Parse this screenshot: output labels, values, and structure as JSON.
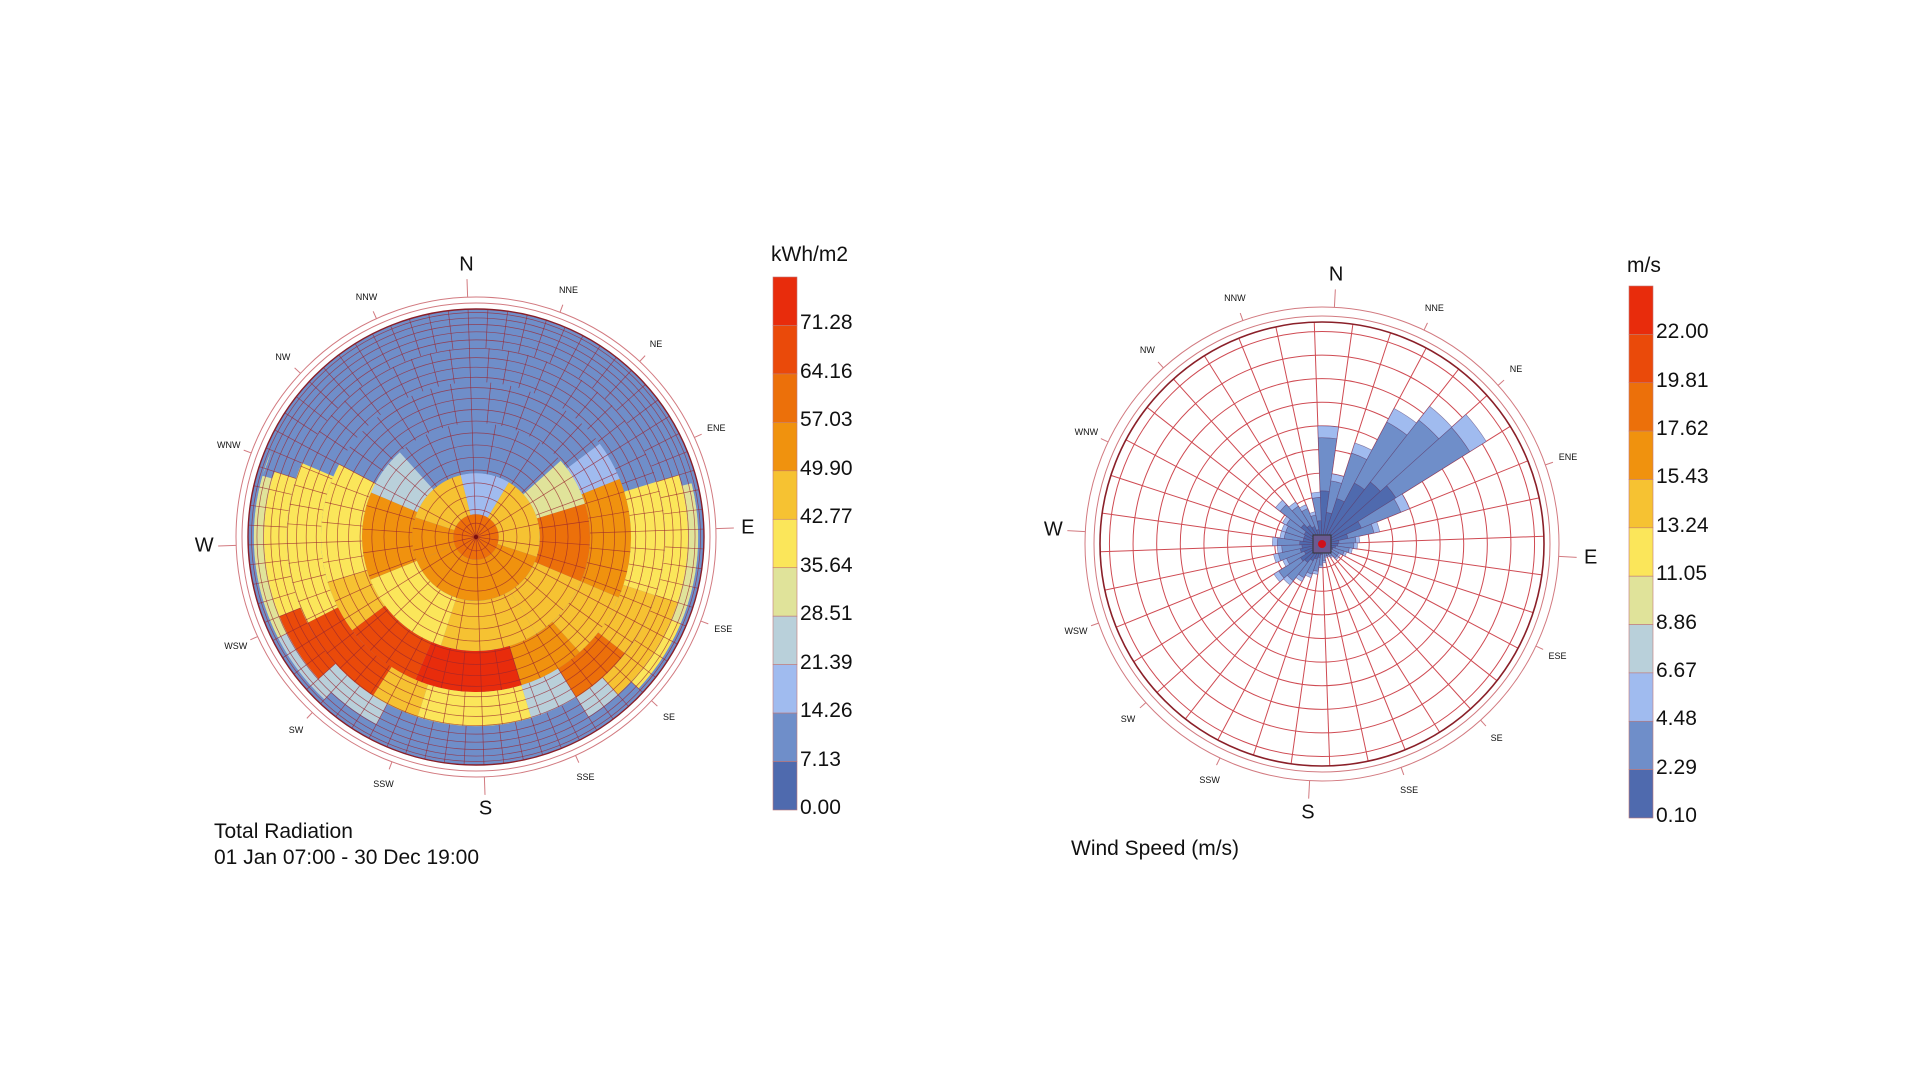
{
  "chart_data": [
    {
      "type": "heatmap",
      "subtype": "polar-sky-matrix",
      "title": "Total Radiation",
      "subtitle": "01 Jan 07:00 - 30 Dec 19:00",
      "legend": {
        "title": "kWh/m2",
        "placement": "right",
        "labels": [
          "71.28",
          "64.16",
          "57.03",
          "49.90",
          "42.77",
          "35.64",
          "28.51",
          "21.39",
          "14.26",
          "7.13",
          "0.00"
        ],
        "colors": [
          "#e82c0c",
          "#ea4a0a",
          "#ec700a",
          "#f0920e",
          "#f6c232",
          "#fbe65a",
          "#e0e39a",
          "#b9d0da",
          "#a0bbef",
          "#6f8ec9",
          "#4f6aae"
        ]
      },
      "compass": {
        "major": [
          "N",
          "E",
          "S",
          "W"
        ],
        "minor": [
          "NNE",
          "NE",
          "ENE",
          "ESE",
          "SE",
          "SSE",
          "SSW",
          "SW",
          "WSW",
          "WNW",
          "NW",
          "NNW"
        ]
      },
      "bands": [
        {
          "segments": [
            [
              0,
              360,
              8
            ]
          ]
        },
        {
          "segments": [
            [
              -12,
              33,
              2
            ],
            [
              33,
              110,
              6
            ],
            [
              110,
              250,
              7
            ],
            [
              250,
              290,
              7
            ],
            [
              290,
              348,
              6
            ]
          ]
        },
        {
          "segments": [
            [
              -40,
              50,
              1
            ],
            [
              50,
              75,
              4
            ],
            [
              75,
              115,
              8
            ],
            [
              115,
              150,
              6
            ],
            [
              150,
              200,
              6
            ],
            [
              200,
              250,
              5
            ],
            [
              250,
              295,
              7
            ],
            [
              295,
              320,
              3
            ],
            [
              320,
              320,
              2
            ]
          ]
        },
        {
          "segments": [
            [
              -60,
              55,
              1
            ],
            [
              55,
              70,
              2
            ],
            [
              70,
              115,
              7
            ],
            [
              115,
              140,
              6
            ],
            [
              140,
              165,
              7
            ],
            [
              165,
              205,
              10
            ],
            [
              205,
              235,
              9
            ],
            [
              235,
              255,
              6
            ],
            [
              255,
              300,
              5
            ],
            [
              300,
              300,
              2
            ]
          ]
        },
        {
          "segments": [
            [
              -65,
              62,
              1
            ],
            [
              62,
              75,
              1
            ],
            [
              75,
              110,
              5
            ],
            [
              110,
              130,
              6
            ],
            [
              130,
              150,
              8
            ],
            [
              150,
              165,
              3
            ],
            [
              165,
              200,
              5
            ],
            [
              200,
              215,
              6
            ],
            [
              215,
              245,
              9
            ],
            [
              245,
              295,
              5
            ],
            [
              295,
              295,
              1
            ]
          ]
        },
        {
          "segments": [
            [
              -70,
              75,
              1
            ],
            [
              75,
              110,
              5
            ],
            [
              110,
              140,
              6
            ],
            [
              140,
              150,
              3
            ],
            [
              150,
              210,
              1
            ],
            [
              210,
              230,
              3
            ],
            [
              230,
              250,
              9
            ],
            [
              250,
              290,
              5
            ],
            [
              290,
              290,
              4
            ]
          ]
        },
        {
          "segments": [
            [
              -72,
              78,
              1
            ],
            [
              78,
              115,
              4
            ],
            [
              115,
              135,
              5
            ],
            [
              135,
              225,
              1
            ],
            [
              225,
              245,
              3
            ],
            [
              245,
              295,
              4
            ],
            [
              295,
              295,
              1
            ]
          ]
        },
        {
          "segments": [
            [
              0,
              360,
              1
            ]
          ]
        }
      ]
    },
    {
      "type": "bar",
      "subtype": "wind-rose",
      "title": "Wind Speed (m/s)",
      "legend": {
        "title": "m/s",
        "placement": "right",
        "labels": [
          "22.00",
          "19.81",
          "17.62",
          "15.43",
          "13.24",
          "11.05",
          "8.86",
          "6.67",
          "4.48",
          "2.29",
          "0.10"
        ],
        "colors": [
          "#e82c0c",
          "#ea4a0a",
          "#ec700a",
          "#f0920e",
          "#f6c232",
          "#fbe65a",
          "#e0e39a",
          "#b9d0da",
          "#a0bbef",
          "#6f8ec9",
          "#4f6aae"
        ]
      },
      "compass": {
        "major": [
          "N",
          "E",
          "S",
          "W"
        ],
        "minor": [
          "NNE",
          "NE",
          "ENE",
          "ESE",
          "SE",
          "SSE",
          "SSW",
          "SW",
          "WSW",
          "WNW",
          "NW",
          "NNW"
        ]
      },
      "directions_deg": [
        0,
        10,
        20,
        30,
        40,
        50,
        60,
        70,
        80,
        90,
        100,
        110,
        120,
        130,
        140,
        150,
        160,
        170,
        180,
        190,
        200,
        210,
        220,
        230,
        240,
        250,
        260,
        270,
        280,
        290,
        300,
        310,
        320,
        330,
        340,
        350
      ],
      "frequency_rings": 9,
      "frequency": [
        5.0,
        3.0,
        4.5,
        6.5,
        7.4,
        8.2,
        4.0,
        2.5,
        1.6,
        1.5,
        1.3,
        1.1,
        0.9,
        0.9,
        0.7,
        0.6,
        0.6,
        0.8,
        1.0,
        1.3,
        1.5,
        1.8,
        2.2,
        2.4,
        1.8,
        2.1,
        1.9,
        2.1,
        1.8,
        1.8,
        1.9,
        2.5,
        2.1,
        1.8,
        1.4,
        2.2
      ]
    }
  ]
}
